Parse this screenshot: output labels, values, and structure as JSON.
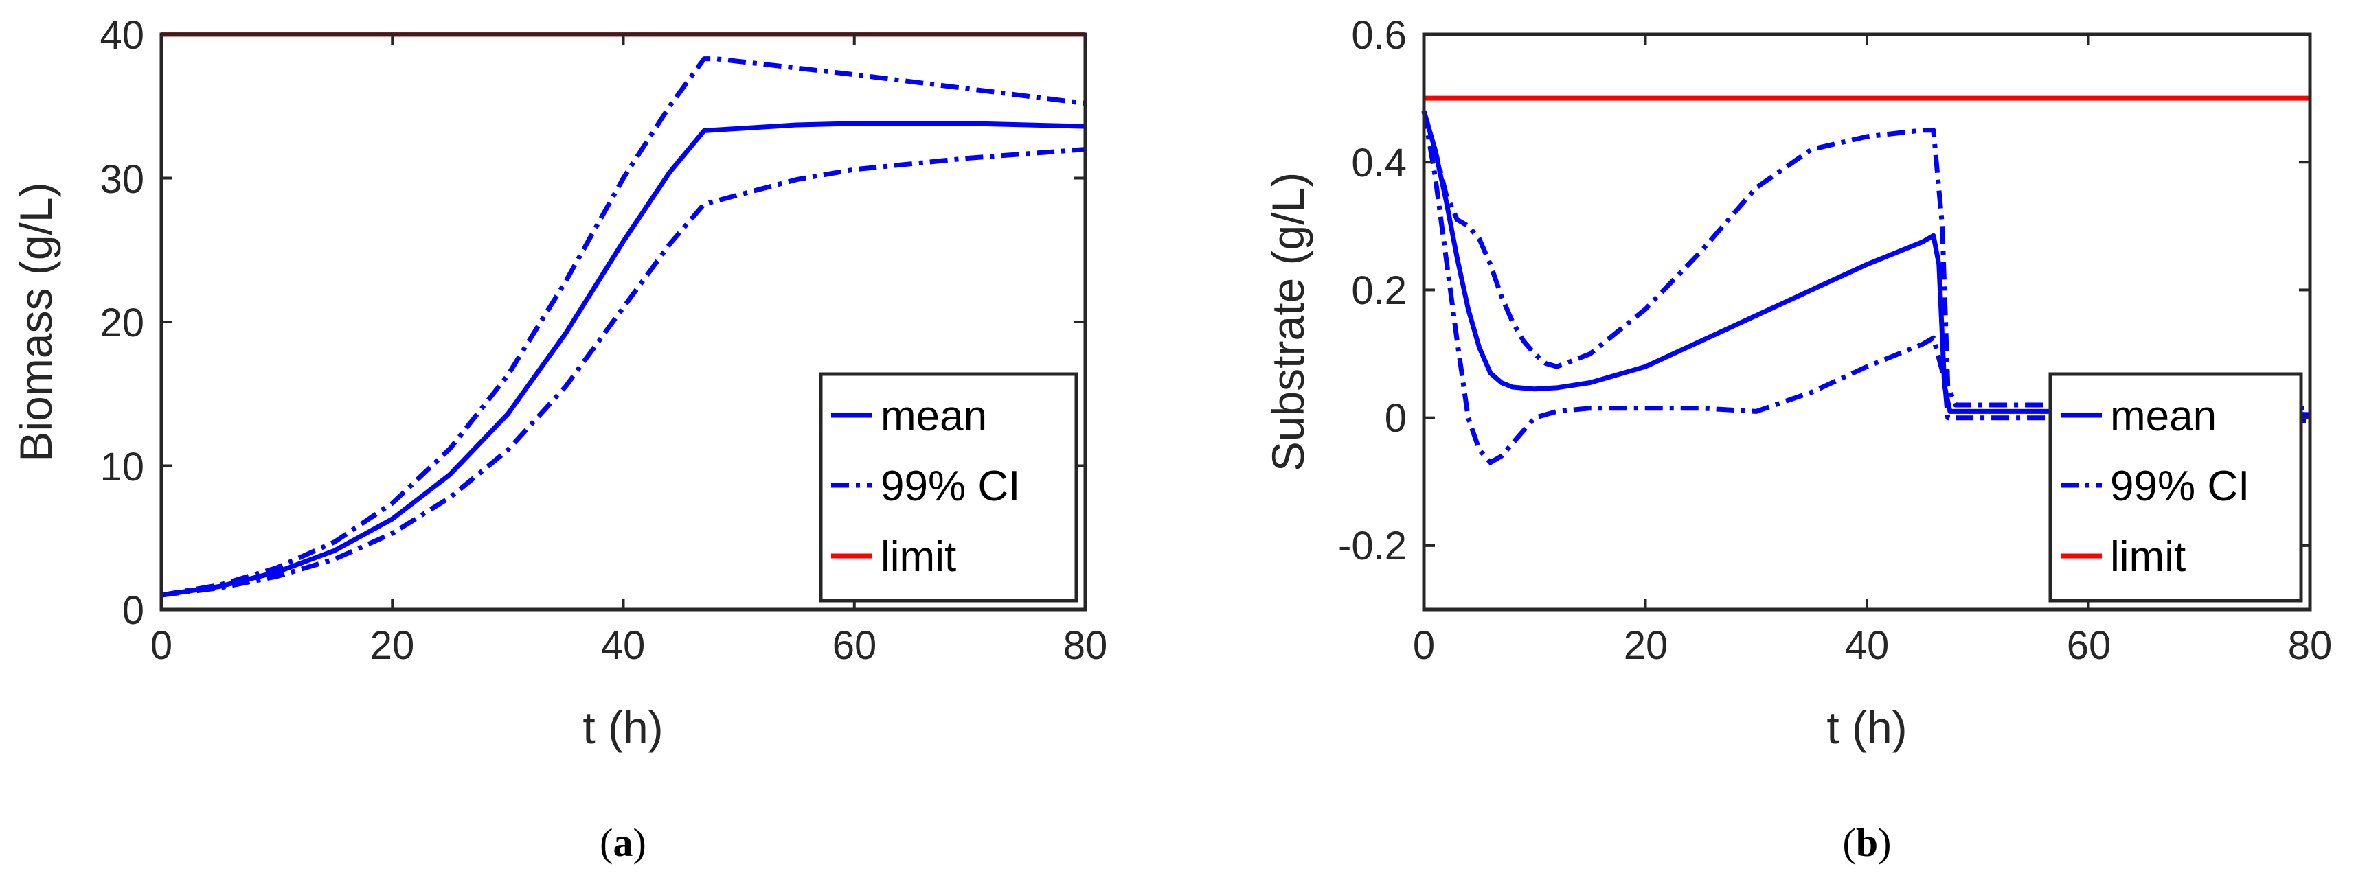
{
  "chart_data": [
    {
      "type": "line",
      "panel": "a",
      "caption": {
        "open": "(",
        "letter": "a",
        "close": ")"
      },
      "xlabel": "t (h)",
      "ylabel": "Biomass (g/L)",
      "xlim": [
        0,
        80
      ],
      "ylim": [
        0,
        40
      ],
      "xticks": [
        "0",
        "20",
        "40",
        "60",
        "80"
      ],
      "yticks": [
        "0",
        "10",
        "20",
        "30",
        "40"
      ],
      "legend": {
        "position": "bottom-right",
        "entries": [
          "mean",
          "99% CI",
          "limit"
        ]
      },
      "series": [
        {
          "name": "mean",
          "style": "solid",
          "color": "#0000ff",
          "x": [
            0,
            5,
            10,
            15,
            20,
            25,
            30,
            35,
            40,
            44,
            47,
            55,
            60,
            70,
            80
          ],
          "y": [
            1.0,
            1.6,
            2.6,
            4.1,
            6.3,
            9.4,
            13.6,
            19.2,
            25.6,
            30.4,
            33.3,
            33.7,
            33.8,
            33.8,
            33.6
          ]
        },
        {
          "name": "99% CI upper",
          "style": "dashdot",
          "color": "#0000ff",
          "x": [
            0,
            5,
            10,
            15,
            20,
            25,
            30,
            35,
            40,
            44,
            47,
            48,
            60,
            70,
            80
          ],
          "y": [
            1.0,
            1.7,
            2.9,
            4.7,
            7.4,
            11.2,
            16.3,
            22.8,
            30.0,
            35.0,
            38.3,
            38.3,
            37.2,
            36.2,
            35.2
          ]
        },
        {
          "name": "99% CI lower",
          "style": "dashdot",
          "color": "#0000ff",
          "x": [
            0,
            5,
            10,
            15,
            20,
            25,
            30,
            35,
            40,
            44,
            47,
            55,
            60,
            70,
            80
          ],
          "y": [
            1.0,
            1.5,
            2.3,
            3.5,
            5.3,
            7.8,
            11.1,
            15.5,
            21.0,
            25.4,
            28.2,
            29.9,
            30.6,
            31.4,
            32.0
          ]
        },
        {
          "name": "limit",
          "style": "solid",
          "color": "#ff0000",
          "x": [
            0,
            80
          ],
          "y": [
            40,
            40
          ]
        }
      ]
    },
    {
      "type": "line",
      "panel": "b",
      "caption": {
        "open": "(",
        "letter": "b",
        "close": ")"
      },
      "xlabel": "t (h)",
      "ylabel": "Substrate (g/L)",
      "xlim": [
        0,
        80
      ],
      "ylim": [
        -0.3,
        0.6
      ],
      "xticks": [
        "0",
        "20",
        "40",
        "60",
        "80"
      ],
      "yticks": [
        "-0.2",
        "0",
        "0.2",
        "0.4",
        "0.6"
      ],
      "legend": {
        "position": "bottom-right",
        "entries": [
          "mean",
          "99% CI",
          "limit"
        ]
      },
      "series": [
        {
          "name": "mean",
          "style": "solid",
          "color": "#0000ff",
          "x": [
            0,
            1,
            2,
            3,
            4,
            5,
            6,
            7,
            8,
            10,
            12,
            15,
            20,
            25,
            30,
            35,
            40,
            45,
            46,
            46.5,
            47,
            47.5,
            50,
            60,
            70,
            80
          ],
          "y": [
            0.48,
            0.42,
            0.34,
            0.25,
            0.17,
            0.11,
            0.07,
            0.055,
            0.048,
            0.045,
            0.047,
            0.055,
            0.08,
            0.12,
            0.16,
            0.2,
            0.24,
            0.275,
            0.285,
            0.24,
            0.05,
            0.01,
            0.01,
            0.01,
            0.01,
            0.005
          ]
        },
        {
          "name": "99% CI upper",
          "style": "dashdot",
          "color": "#0000ff",
          "x": [
            0,
            1,
            2,
            3,
            4,
            5,
            6,
            7,
            8,
            9,
            10,
            11,
            12,
            15,
            20,
            25,
            30,
            35,
            40,
            45,
            46,
            46.8,
            47.3,
            48,
            60,
            70,
            80
          ],
          "y": [
            0.48,
            0.42,
            0.35,
            0.31,
            0.3,
            0.28,
            0.24,
            0.19,
            0.15,
            0.12,
            0.1,
            0.085,
            0.08,
            0.1,
            0.17,
            0.26,
            0.36,
            0.42,
            0.44,
            0.45,
            0.45,
            0.3,
            0.05,
            0.02,
            0.02,
            0.02,
            0.015
          ]
        },
        {
          "name": "99% CI lower",
          "style": "dashdot",
          "color": "#0000ff",
          "x": [
            0,
            1,
            2,
            3,
            4,
            5,
            6,
            7,
            8,
            9,
            10,
            12,
            15,
            20,
            25,
            30,
            35,
            40,
            45,
            46,
            47,
            47.3,
            48,
            60,
            70,
            80
          ],
          "y": [
            0.48,
            0.38,
            0.25,
            0.12,
            0.0,
            -0.05,
            -0.07,
            -0.06,
            -0.04,
            -0.02,
            0.0,
            0.01,
            0.015,
            0.015,
            0.015,
            0.01,
            0.04,
            0.08,
            0.115,
            0.125,
            0.06,
            0.0,
            0.0,
            0.0,
            0.0,
            -0.005
          ]
        },
        {
          "name": "limit",
          "style": "solid",
          "color": "#ff0000",
          "x": [
            0,
            80
          ],
          "y": [
            0.5,
            0.5
          ]
        }
      ]
    }
  ]
}
